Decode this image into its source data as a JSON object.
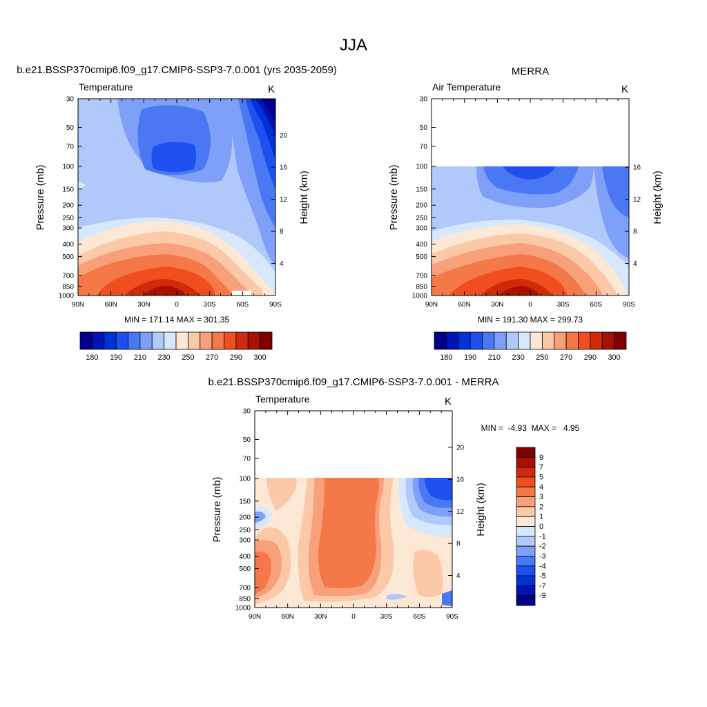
{
  "figure_title": "JJA",
  "chart_data": [
    {
      "type": "heatmap",
      "panel": "model",
      "title": "b.e21.BSSP370cmip6.f09_g17.CMIP6-SSP3-7.0.001 (yrs 2035-2059)",
      "variable": "Temperature",
      "units": "K",
      "ylabel": "Pressure (mb)",
      "ylabel_right": "Height (km)",
      "x_ticks": [
        "90N",
        "60N",
        "30N",
        "0",
        "30S",
        "60S",
        "90S"
      ],
      "y_ticks": [
        "30",
        "50",
        "70",
        "100",
        "150",
        "200",
        "250",
        "300",
        "400",
        "500",
        "700",
        "850",
        "1000"
      ],
      "height_ticks": [
        "4",
        "8",
        "12",
        "16",
        "20"
      ],
      "stats": "MIN = 171.14  MAX = 301.35",
      "min": 171.14,
      "max": 301.35,
      "colorbar_levels": [
        180,
        190,
        210,
        230,
        250,
        270,
        290,
        300
      ],
      "colorbar_labels": [
        "180",
        "190",
        "210",
        "230",
        "250",
        "270",
        "290",
        "300"
      ],
      "colors": [
        "#00008c",
        "#0014b4",
        "#0032d8",
        "#1e50f0",
        "#4a78f4",
        "#7ea0f8",
        "#b0c8fa",
        "#d8e8fc",
        "#fde8d6",
        "#fbc8a8",
        "#f8a07a",
        "#f47848",
        "#f04e1e",
        "#d02a0a",
        "#a81000",
        "#800000"
      ],
      "data_coverage_top_mb": 30
    },
    {
      "type": "heatmap",
      "panel": "obs",
      "title": "MERRA",
      "variable": "Air Temperature",
      "units": "K",
      "ylabel": "Pressure (mb)",
      "ylabel_right": "Height (km)",
      "x_ticks": [
        "90N",
        "60N",
        "30N",
        "0",
        "30S",
        "60S",
        "90S"
      ],
      "y_ticks": [
        "30",
        "50",
        "70",
        "100",
        "150",
        "200",
        "250",
        "300",
        "400",
        "500",
        "700",
        "850",
        "1000"
      ],
      "height_ticks": [
        "4",
        "8",
        "12",
        "16"
      ],
      "stats": "MIN = 191.30  MAX = 299.73",
      "min": 191.3,
      "max": 299.73,
      "colorbar_labels": [
        "180",
        "190",
        "210",
        "230",
        "250",
        "270",
        "290",
        "300"
      ],
      "data_coverage_top_mb": 100
    },
    {
      "type": "heatmap",
      "panel": "diff",
      "title": "b.e21.BSSP370cmip6.f09_g17.CMIP6-SSP3-7.0.001 - MERRA",
      "variable": "Temperature",
      "units": "K",
      "ylabel": "Pressure (mb)",
      "ylabel_right": "Height (km)",
      "x_ticks": [
        "90N",
        "60N",
        "30N",
        "0",
        "30S",
        "60S",
        "90S"
      ],
      "y_ticks": [
        "30",
        "50",
        "70",
        "100",
        "150",
        "200",
        "250",
        "300",
        "400",
        "500",
        "700",
        "850",
        "1000"
      ],
      "height_ticks": [
        "4",
        "8",
        "12",
        "16",
        "20"
      ],
      "stats": "MIN =  -4.93  MAX =   4.95",
      "min": -4.93,
      "max": 4.95,
      "colorbar_labels": [
        "9",
        "7",
        "5",
        "4",
        "3",
        "2",
        "1",
        "0",
        "-1",
        "-2",
        "-3",
        "-4",
        "-5",
        "-7",
        "-9"
      ],
      "colors": [
        "#800000",
        "#a81000",
        "#d02a0a",
        "#f04e1e",
        "#f47848",
        "#f8a07a",
        "#fbc8a8",
        "#fde8d6",
        "#d8e8fc",
        "#b0c8fa",
        "#7ea0f8",
        "#4a78f4",
        "#1e50f0",
        "#0032d8",
        "#0014b4",
        "#00008c"
      ],
      "data_coverage_top_mb": 100
    }
  ]
}
